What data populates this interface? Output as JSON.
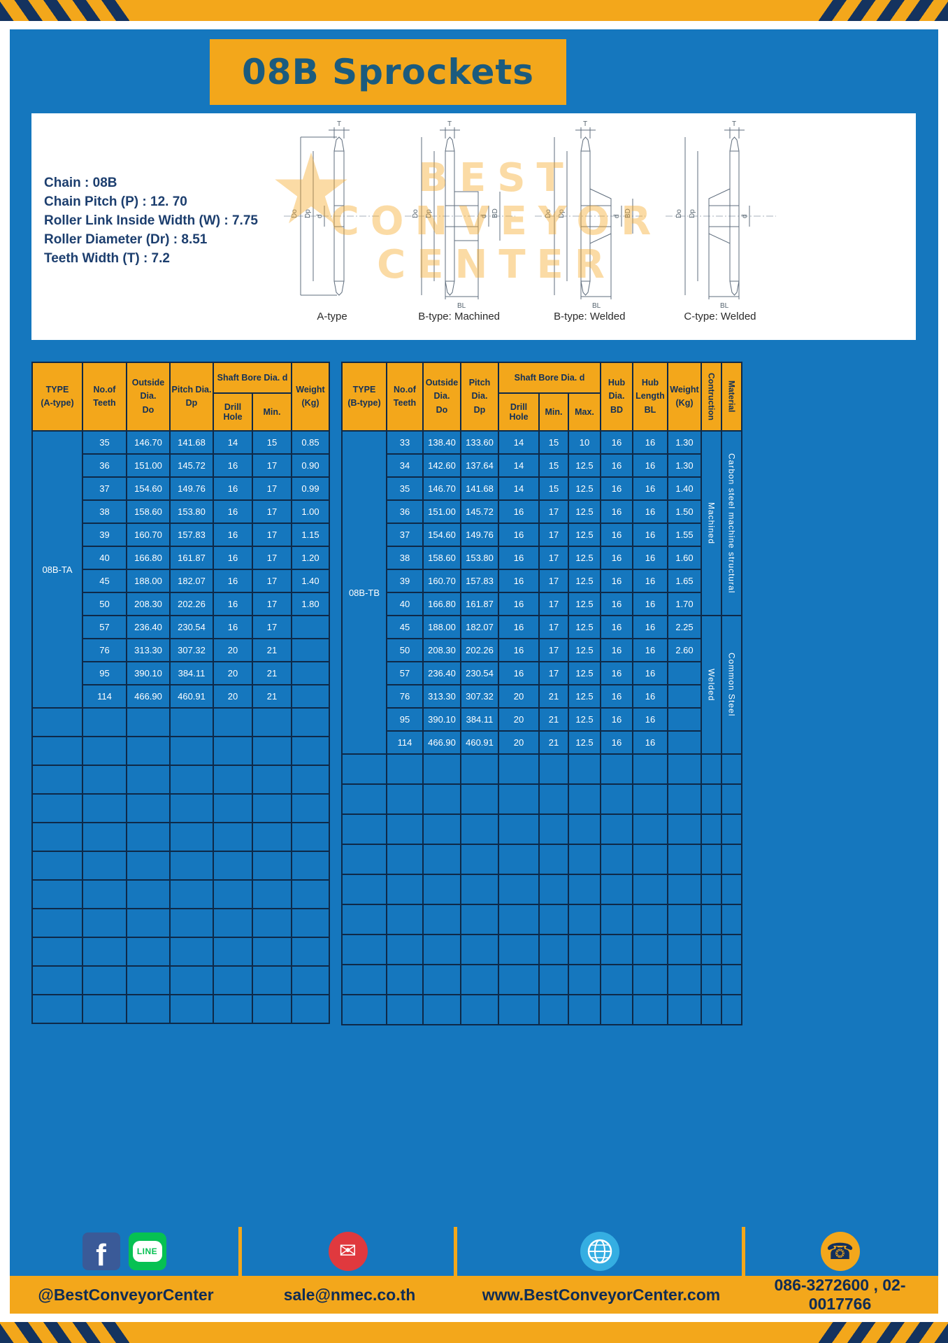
{
  "title": "08B Sprockets",
  "specs": [
    "Chain  :  08B",
    "Chain Pitch (P)  :  12. 70",
    "Roller Link Inside Width (W)  :  7.75",
    "Roller Diameter (Dr)  :  8.51",
    "Teeth Width (T)  :  7.2"
  ],
  "watermark": [
    "BEST",
    "CONVEYOR",
    "CENTER"
  ],
  "diagrams": {
    "captions": [
      "A-type",
      "B-type: Machined",
      "B-type: Welded",
      "C-type: Welded"
    ]
  },
  "dims": {
    "T": "T",
    "Do": "Do",
    "Dp": "Dp",
    "d": "d",
    "BD": "BD",
    "BL": "BL"
  },
  "table_a": {
    "header": {
      "type": [
        "TYPE",
        "(A-type)"
      ],
      "teeth": [
        "No.of",
        "Teeth"
      ],
      "outside": [
        "Outside",
        "Dia.",
        "Do"
      ],
      "pitch": [
        "Pitch Dia.",
        "Dp"
      ],
      "shaft_bore": "Shaft Bore Dia. d",
      "drill_hole": "Drill Hole",
      "min": "Min.",
      "weight": [
        "Weight",
        "(Kg)"
      ]
    },
    "type_label": "08B-TA",
    "rows": [
      [
        "35",
        "146.70",
        "141.68",
        "14",
        "15",
        "0.85"
      ],
      [
        "36",
        "151.00",
        "145.72",
        "16",
        "17",
        "0.90"
      ],
      [
        "37",
        "154.60",
        "149.76",
        "16",
        "17",
        "0.99"
      ],
      [
        "38",
        "158.60",
        "153.80",
        "16",
        "17",
        "1.00"
      ],
      [
        "39",
        "160.70",
        "157.83",
        "16",
        "17",
        "1.15"
      ],
      [
        "40",
        "166.80",
        "161.87",
        "16",
        "17",
        "1.20"
      ],
      [
        "45",
        "188.00",
        "182.07",
        "16",
        "17",
        "1.40"
      ],
      [
        "50",
        "208.30",
        "202.26",
        "16",
        "17",
        "1.80"
      ],
      [
        "57",
        "236.40",
        "230.54",
        "16",
        "17",
        ""
      ],
      [
        "76",
        "313.30",
        "307.32",
        "20",
        "21",
        ""
      ],
      [
        "95",
        "390.10",
        "384.11",
        "20",
        "21",
        ""
      ],
      [
        "114",
        "466.90",
        "460.91",
        "20",
        "21",
        ""
      ]
    ],
    "empty_rows": 11
  },
  "table_b": {
    "header": {
      "type": [
        "TYPE",
        "(B-type)"
      ],
      "teeth": [
        "No.of",
        "Teeth"
      ],
      "outside": [
        "Outside",
        "Dia.",
        "Do"
      ],
      "pitch": [
        "Pitch Dia.",
        "Dp"
      ],
      "shaft_bore": "Shaft Bore Dia. d",
      "drill_hole": "Drill Hole",
      "min": "Min.",
      "max": "Max.",
      "hub_dia": [
        "Hub Dia.",
        "BD"
      ],
      "hub_length": [
        "Hub",
        "Length",
        "BL"
      ],
      "weight": [
        "Weight",
        "(Kg)"
      ],
      "construction": "Contruction",
      "material": "Material"
    },
    "type_label": "08B-TB",
    "rows": [
      [
        "33",
        "138.40",
        "133.60",
        "14",
        "15",
        "10",
        "16",
        "16",
        "1.30"
      ],
      [
        "34",
        "142.60",
        "137.64",
        "14",
        "15",
        "12.5",
        "16",
        "16",
        "1.30"
      ],
      [
        "35",
        "146.70",
        "141.68",
        "14",
        "15",
        "12.5",
        "16",
        "16",
        "1.40"
      ],
      [
        "36",
        "151.00",
        "145.72",
        "16",
        "17",
        "12.5",
        "16",
        "16",
        "1.50"
      ],
      [
        "37",
        "154.60",
        "149.76",
        "16",
        "17",
        "12.5",
        "16",
        "16",
        "1.55"
      ],
      [
        "38",
        "158.60",
        "153.80",
        "16",
        "17",
        "12.5",
        "16",
        "16",
        "1.60"
      ],
      [
        "39",
        "160.70",
        "157.83",
        "16",
        "17",
        "12.5",
        "16",
        "16",
        "1.65"
      ],
      [
        "40",
        "166.80",
        "161.87",
        "16",
        "17",
        "12.5",
        "16",
        "16",
        "1.70"
      ],
      [
        "45",
        "188.00",
        "182.07",
        "16",
        "17",
        "12.5",
        "16",
        "16",
        "2.25"
      ],
      [
        "50",
        "208.30",
        "202.26",
        "16",
        "17",
        "12.5",
        "16",
        "16",
        "2.60"
      ],
      [
        "57",
        "236.40",
        "230.54",
        "16",
        "17",
        "12.5",
        "16",
        "16",
        ""
      ],
      [
        "76",
        "313.30",
        "307.32",
        "20",
        "21",
        "12.5",
        "16",
        "16",
        ""
      ],
      [
        "95",
        "390.10",
        "384.11",
        "20",
        "21",
        "12.5",
        "16",
        "16",
        ""
      ],
      [
        "114",
        "466.90",
        "460.91",
        "20",
        "21",
        "12.5",
        "16",
        "16",
        ""
      ]
    ],
    "construction_groups": [
      {
        "label": "Machined",
        "rows": 8
      },
      {
        "label": "Welded",
        "rows": 6
      }
    ],
    "material_groups": [
      {
        "label": "Carbon steel  machine structural",
        "rows": 8
      },
      {
        "label": "Common  Steel",
        "rows": 6
      }
    ],
    "empty_rows": 9
  },
  "footer": {
    "facebook_letter": "f",
    "line_label": "LINE",
    "sections": [
      {
        "text": "@BestConveyorCenter"
      },
      {
        "text": "sale@nmec.co.th"
      },
      {
        "text": "www.BestConveyorCenter.com"
      },
      {
        "text": "086-3272600 , 02-0017766"
      }
    ]
  },
  "colors": {
    "gold": "#f3a71b",
    "blue": "#1577be",
    "navy": "#0e2948",
    "teal": "#1b5b7e",
    "watermark_orange": "#f5aa28"
  }
}
